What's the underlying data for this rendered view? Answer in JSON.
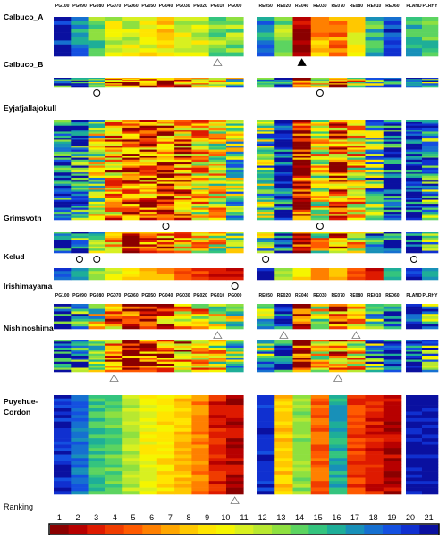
{
  "chart_data": {
    "type": "heatmap",
    "column_headers": {
      "PG": [
        "PG100",
        "PG090",
        "PG080",
        "PG070",
        "PG060",
        "PG050",
        "PG040",
        "PG030",
        "PG020",
        "PG010",
        "PG000"
      ],
      "RE": [
        "RE050",
        "RE020",
        "RE040",
        "RE030",
        "RE070",
        "RE080",
        "RE010",
        "RE060"
      ],
      "PL": [
        "PLAND",
        "PLRHY"
      ]
    },
    "volcanoes": [
      {
        "name": "Calbuco_A",
        "rows": 10,
        "markers": [
          {
            "group": "PG",
            "col": 9,
            "type": "triangle-open"
          },
          {
            "group": "RE",
            "col": 2,
            "type": "triangle-filled"
          }
        ]
      },
      {
        "name": "Calbuco_B",
        "rows": 8,
        "markers": [
          {
            "group": "PG",
            "col": 2,
            "type": "circle"
          },
          {
            "group": "RE",
            "col": 3,
            "type": "circle"
          }
        ]
      },
      {
        "name": "Eyjafjallajokull",
        "rows": 50,
        "markers": [
          {
            "group": "PG",
            "col": 6,
            "type": "circle"
          },
          {
            "group": "RE",
            "col": 3,
            "type": "circle"
          }
        ]
      },
      {
        "name": "Grimsvotn",
        "rows": 10,
        "markers": [
          {
            "group": "PG",
            "col": 1,
            "type": "circle"
          },
          {
            "group": "PG",
            "col": 2,
            "type": "circle"
          },
          {
            "group": "RE",
            "col": 0,
            "type": "circle"
          },
          {
            "group": "PL",
            "col": 0,
            "type": "circle"
          }
        ]
      },
      {
        "name": "Kelud",
        "rows": 4,
        "markers": [
          {
            "group": "PG",
            "col": 10,
            "type": "circle"
          }
        ]
      },
      {
        "name": "Irishimayama",
        "rows": 10,
        "markers": [
          {
            "group": "PG",
            "col": 9,
            "type": "triangle-open"
          },
          {
            "group": "RE",
            "col": 1,
            "type": "triangle-open"
          },
          {
            "group": "RE",
            "col": 5,
            "type": "triangle-open"
          }
        ]
      },
      {
        "name": "Nishinoshima",
        "rows": 16,
        "markers": [
          {
            "group": "PG",
            "col": 3,
            "type": "triangle-open"
          },
          {
            "group": "RE",
            "col": 4,
            "type": "triangle-open"
          }
        ]
      },
      {
        "name": "Puyehue-Cordon",
        "name_lines": [
          "Puyehue-",
          "Cordon"
        ],
        "rows": 30,
        "markers": [
          {
            "group": "PG",
            "col": 10,
            "type": "triangle-open"
          }
        ]
      }
    ],
    "colorbar": {
      "title": "Ranking",
      "ticks": [
        "1",
        "2",
        "3",
        "4",
        "5",
        "6",
        "7",
        "8",
        "9",
        "10",
        "11",
        "12",
        "13",
        "14",
        "15",
        "16",
        "17",
        "18",
        "19",
        "20",
        "21"
      ],
      "colors": [
        "#8b0000",
        "#b70000",
        "#de1a00",
        "#f03c00",
        "#ff5a00",
        "#ff8000",
        "#ffa600",
        "#ffc800",
        "#ffe500",
        "#f5f500",
        "#d8f020",
        "#b8e830",
        "#8ee040",
        "#5cd460",
        "#34c47e",
        "#1eae98",
        "#1890b8",
        "#1670d0",
        "#1450e0",
        "#1030d0",
        "#0a10a0"
      ]
    }
  }
}
